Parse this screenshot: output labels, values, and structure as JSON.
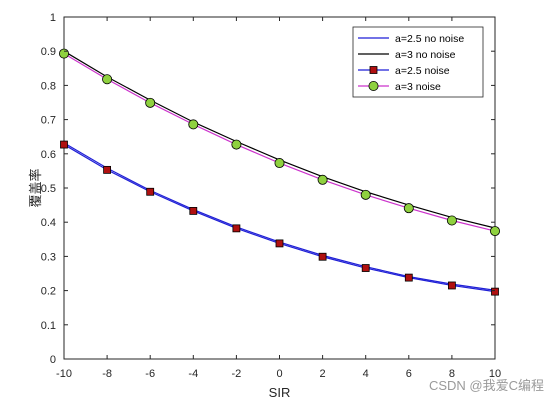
{
  "chart_data": {
    "type": "line",
    "title": "",
    "xlabel": "SIR",
    "ylabel": "覆盖率",
    "xlim": [
      -10,
      10
    ],
    "ylim": [
      0,
      1
    ],
    "xticks": [
      -10,
      -8,
      -6,
      -4,
      -2,
      0,
      2,
      4,
      6,
      8,
      10
    ],
    "xtick_labels": [
      "-10",
      "-8",
      "-6",
      "-4",
      "-2",
      "0",
      "2",
      "4",
      "6",
      "8",
      "10"
    ],
    "yticks": [
      0,
      0.1,
      0.2,
      0.3,
      0.4,
      0.5,
      0.6,
      0.7,
      0.8,
      0.9,
      1
    ],
    "ytick_labels": [
      "0",
      "0.1",
      "0.2",
      "0.3",
      "0.4",
      "0.5",
      "0.6",
      "0.7",
      "0.8",
      "0.9",
      "1"
    ],
    "grid": false,
    "legend_position": "top-right",
    "x": [
      -10,
      -8,
      -6,
      -4,
      -2,
      0,
      2,
      4,
      6,
      8,
      10
    ],
    "series": [
      {
        "name": "a=2.5 no noise",
        "color": "#1f1fd6",
        "marker": "none",
        "values": [
          0.632,
          0.558,
          0.493,
          0.437,
          0.386,
          0.342,
          0.303,
          0.27,
          0.241,
          0.219,
          0.201
        ]
      },
      {
        "name": "a=3 no noise",
        "color": "#000000",
        "marker": "none",
        "values": [
          0.9,
          0.825,
          0.757,
          0.693,
          0.636,
          0.582,
          0.533,
          0.489,
          0.45,
          0.414,
          0.383
        ]
      },
      {
        "name": "a=2.5 noise",
        "color": "#1f1fd6",
        "marker": "square",
        "marker_fill": "#b01010",
        "values": [
          0.627,
          0.553,
          0.489,
          0.433,
          0.382,
          0.338,
          0.299,
          0.266,
          0.238,
          0.215,
          0.197
        ]
      },
      {
        "name": "a=3 noise",
        "color": "#cc33cc",
        "marker": "circle",
        "marker_fill": "#8fd13f",
        "values": [
          0.893,
          0.818,
          0.749,
          0.686,
          0.627,
          0.573,
          0.524,
          0.48,
          0.441,
          0.405,
          0.374
        ]
      }
    ]
  },
  "watermark": "CSDN @我爱C编程"
}
